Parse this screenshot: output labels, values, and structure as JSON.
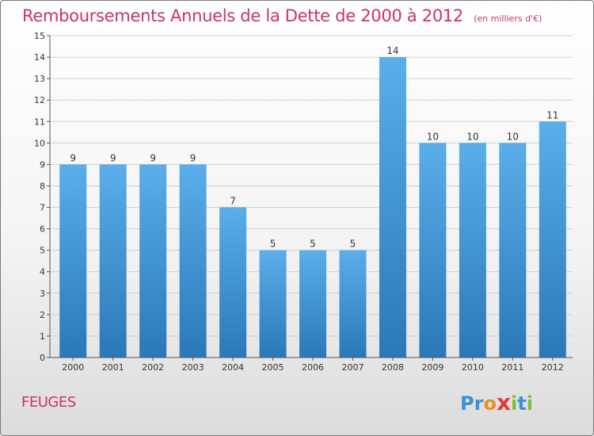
{
  "header": {
    "title": "Remboursements Annuels de la Dette de 2000 à 2012",
    "unit": "(en milliers d'€)"
  },
  "footer": {
    "commune": "FEUGES",
    "logo_letters": [
      {
        "ch": "P",
        "color": "#3a8fd6"
      },
      {
        "ch": "r",
        "color": "#3a8fd6"
      },
      {
        "ch": "o",
        "color": "#f08c1e"
      },
      {
        "ch": "x",
        "color": "#e23b3b"
      },
      {
        "ch": "i",
        "color": "#7cbf3a"
      },
      {
        "ch": "t",
        "color": "#3a8fd6"
      },
      {
        "ch": "i",
        "color": "#7cbf3a"
      }
    ]
  },
  "chart_data": {
    "type": "bar",
    "categories": [
      "2000",
      "2001",
      "2002",
      "2003",
      "2004",
      "2005",
      "2006",
      "2007",
      "2008",
      "2009",
      "2010",
      "2011",
      "2012"
    ],
    "values": [
      9,
      9,
      9,
      9,
      7,
      5,
      5,
      5,
      14,
      10,
      10,
      10,
      11
    ],
    "data_labels": [
      "9",
      "9",
      "9",
      "9",
      "7",
      "5",
      "5",
      "5",
      "14",
      "10",
      "10",
      "10",
      "11"
    ],
    "ylim": [
      0,
      15
    ],
    "yticks": [
      "0",
      "1",
      "2",
      "3",
      "4",
      "5",
      "6",
      "7",
      "8",
      "9",
      "10",
      "11",
      "12",
      "13",
      "14",
      "15"
    ],
    "grid": true,
    "colors": {
      "bar_top": "#5aaeea",
      "bar_bottom": "#2a78b8",
      "grid": "#d0d0d0",
      "text": "#333333",
      "accent": "#cc3366"
    }
  }
}
